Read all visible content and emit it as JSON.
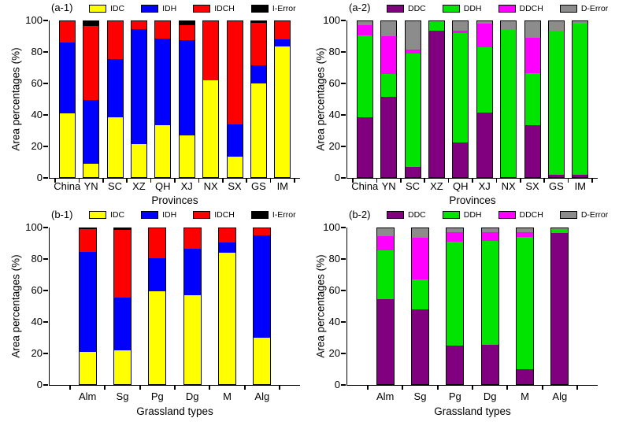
{
  "figure": {
    "background": "#FFFFFF",
    "shared_y_axis_label": "Area percentages (%)"
  },
  "chart_data": [
    {
      "type": "bar",
      "stacked": true,
      "panel_tag": "(a-1)",
      "xlabel": "Provinces",
      "ylabel": "Area percentages (%)",
      "ylim": [
        0,
        100
      ],
      "yticks": [
        0,
        20,
        40,
        60,
        80,
        100
      ],
      "grid": false,
      "legend_position": "top",
      "categories": [
        "China",
        "YN",
        "SC",
        "XZ",
        "QH",
        "XJ",
        "NX",
        "SX",
        "GS",
        "IM"
      ],
      "series": [
        {
          "name": "IDC",
          "color": "#FFFF00",
          "values": [
            41,
            8.5,
            38.5,
            21,
            33.5,
            27,
            62,
            13,
            60,
            84
          ]
        },
        {
          "name": "IDH",
          "color": "#0000FE",
          "values": [
            45.5,
            41,
            37.5,
            74,
            55.5,
            61,
            0,
            21,
            11.5,
            4.5
          ]
        },
        {
          "name": "IDCH",
          "color": "#FD0000",
          "values": [
            13.5,
            47.5,
            24,
            5,
            11,
            9.5,
            38,
            66,
            27.5,
            11.5
          ]
        },
        {
          "name": "I-Error",
          "color": "#000000",
          "values": [
            0,
            3,
            0,
            0,
            0,
            2.5,
            0,
            0,
            1,
            0
          ]
        }
      ]
    },
    {
      "type": "bar",
      "stacked": true,
      "panel_tag": "(a-2)",
      "xlabel": "Provinces",
      "ylabel": "Area percentages (%)",
      "ylim": [
        0,
        100
      ],
      "yticks": [
        0,
        20,
        40,
        60,
        80,
        100
      ],
      "grid": false,
      "legend_position": "top",
      "categories": [
        "China",
        "YN",
        "SC",
        "XZ",
        "QH",
        "XJ",
        "NX",
        "SX",
        "GS",
        "IM"
      ],
      "series": [
        {
          "name": "DDC",
          "color": "#800080",
          "values": [
            38.5,
            51.5,
            6.5,
            94,
            22,
            41.5,
            0,
            33.5,
            1.5,
            1.5
          ]
        },
        {
          "name": "DDH",
          "color": "#00E400",
          "values": [
            52.5,
            14.5,
            73,
            5.5,
            70.5,
            42,
            94.5,
            33,
            92.5,
            97
          ]
        },
        {
          "name": "DDCH",
          "color": "#FF00FF",
          "values": [
            6.5,
            24.5,
            2.5,
            0,
            1.5,
            15,
            0,
            23,
            0,
            0
          ]
        },
        {
          "name": "D-Error",
          "color": "#8C8C8C",
          "values": [
            2.5,
            9.5,
            18,
            0.5,
            6,
            1.5,
            5.5,
            10.5,
            6,
            1.5
          ]
        }
      ]
    },
    {
      "type": "bar",
      "stacked": true,
      "panel_tag": "(b-1)",
      "xlabel": "Grassland types",
      "ylabel": "Area percentages (%)",
      "ylim": [
        0,
        100
      ],
      "yticks": [
        0,
        20,
        40,
        60,
        80,
        100
      ],
      "grid": false,
      "legend_position": "top",
      "categories": [
        "Alm",
        "Sg",
        "Pg",
        "Dg",
        "M",
        "Alg"
      ],
      "series": [
        {
          "name": "IDC",
          "color": "#FFFF00",
          "values": [
            20.5,
            21.5,
            59.5,
            57,
            84.5,
            30
          ]
        },
        {
          "name": "IDH",
          "color": "#0000FE",
          "values": [
            64.5,
            34,
            21.5,
            30,
            6.5,
            65.5
          ]
        },
        {
          "name": "IDCH",
          "color": "#FD0000",
          "values": [
            14.5,
            43.5,
            19,
            13,
            9,
            4.5
          ]
        },
        {
          "name": "I-Error",
          "color": "#000000",
          "values": [
            0.5,
            1,
            0,
            0,
            0,
            0
          ]
        }
      ]
    },
    {
      "type": "bar",
      "stacked": true,
      "panel_tag": "(b-2)",
      "xlabel": "Grassland types",
      "ylabel": "Area percentages (%)",
      "ylim": [
        0,
        100
      ],
      "yticks": [
        0,
        20,
        40,
        60,
        80,
        100
      ],
      "grid": false,
      "legend_position": "top",
      "categories": [
        "Alm",
        "Sg",
        "Pg",
        "Dg",
        "M",
        "Alg"
      ],
      "series": [
        {
          "name": "DDC",
          "color": "#800080",
          "values": [
            54.5,
            48,
            25,
            25.5,
            9.5,
            97
          ]
        },
        {
          "name": "DDH",
          "color": "#00E400",
          "values": [
            31.5,
            19,
            66.5,
            66.5,
            85,
            2.5
          ]
        },
        {
          "name": "DDCH",
          "color": "#FF00FF",
          "values": [
            9,
            27,
            6,
            5.5,
            3,
            0
          ]
        },
        {
          "name": "D-Error",
          "color": "#8C8C8C",
          "values": [
            5,
            6,
            2.5,
            2.5,
            2.5,
            0.5
          ]
        }
      ]
    }
  ]
}
